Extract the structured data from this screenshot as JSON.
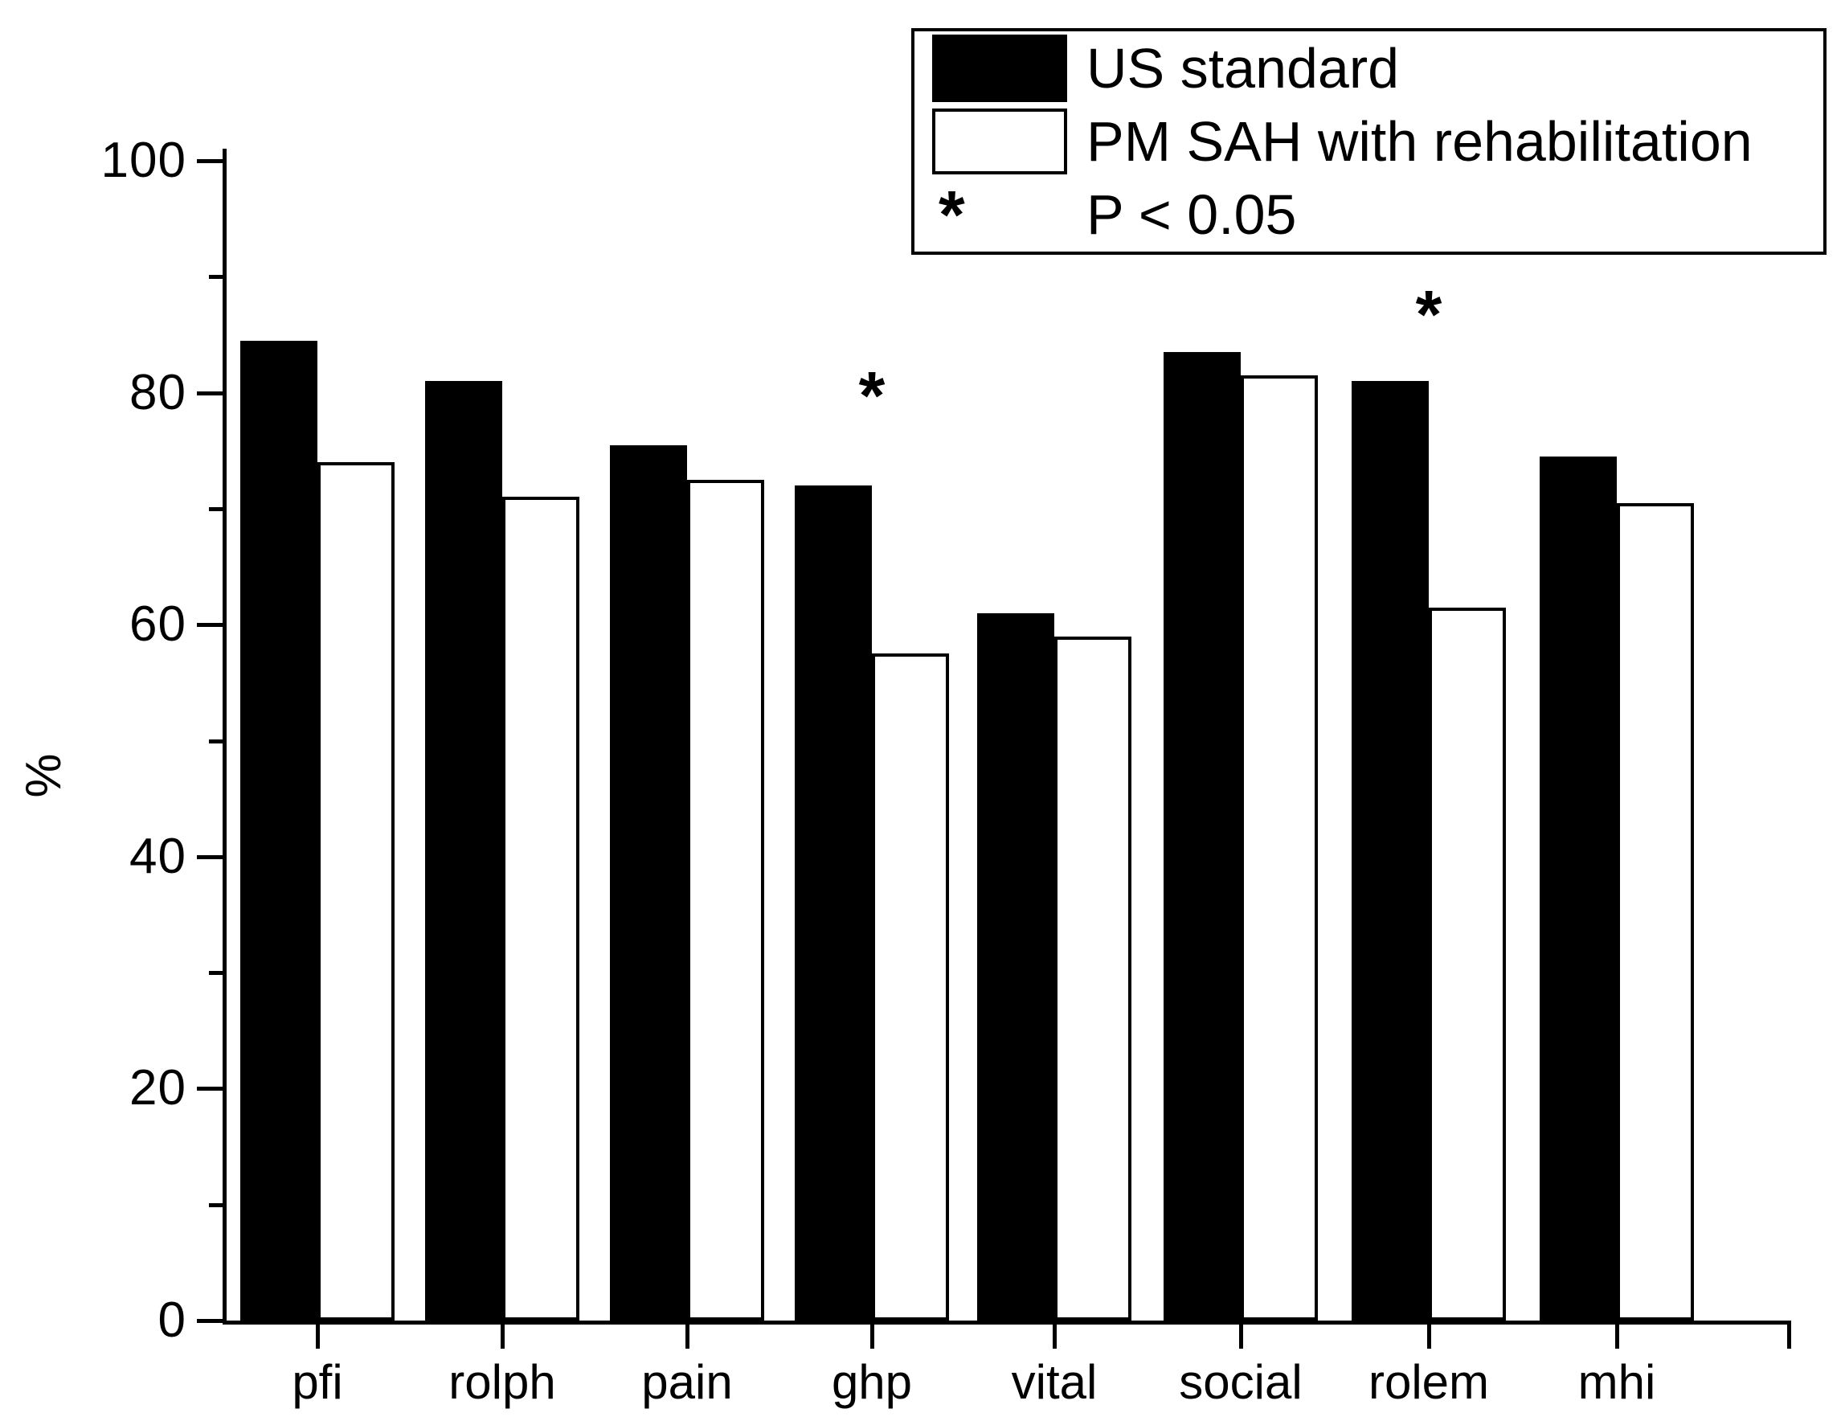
{
  "figure": {
    "background": "#ffffff",
    "ink_color": "#000000"
  },
  "chart_data": {
    "type": "bar",
    "title": "",
    "xlabel": "",
    "ylabel": "%",
    "ylim": [
      0,
      100
    ],
    "yticks_major": [
      0,
      20,
      40,
      60,
      80,
      100
    ],
    "yticks_minor": [
      10,
      30,
      50,
      70,
      90
    ],
    "categories": [
      "pfi",
      "rolph",
      "pain",
      "ghp",
      "vital",
      "social",
      "rolem",
      "mhi"
    ],
    "series": [
      {
        "name": "US standard",
        "fill": "#000000",
        "values": [
          84.5,
          81,
          75.5,
          72,
          61,
          83.5,
          81,
          74.5
        ]
      },
      {
        "name": "PM SAH with rehabilitation",
        "fill": "#ffffff",
        "outline": "#000000",
        "values": [
          74,
          71,
          72.5,
          57.5,
          59,
          81.5,
          61.5,
          70.5
        ]
      }
    ],
    "annotations": [
      {
        "type": "significance-asterisk",
        "marker": "*",
        "category": "ghp",
        "y": 81.5
      },
      {
        "type": "significance-asterisk",
        "marker": "*",
        "category": "rolem",
        "y": 88.5
      }
    ],
    "legend_position": "top-right",
    "grid": false
  },
  "legend": {
    "items": [
      {
        "label": "US standard",
        "swatch": "black-filled"
      },
      {
        "label": "PM SAH with rehabilitation",
        "swatch": "white-outlined"
      }
    ],
    "sig_marker": "*",
    "sig_label": "P < 0.05"
  }
}
